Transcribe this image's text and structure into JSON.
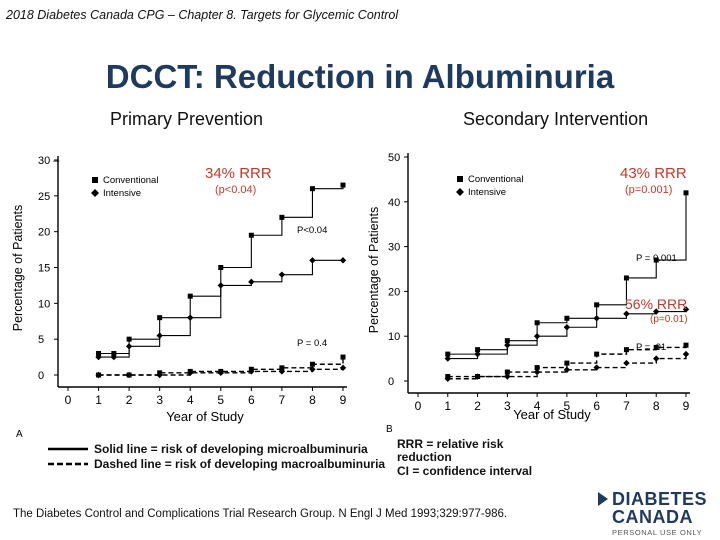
{
  "header": {
    "subtitle": "2018 Diabetes Canada CPG – Chapter 8. Targets for Glycemic Control"
  },
  "slide": {
    "title": "DCCT: Reduction in Albuminuria",
    "left_heading": "Primary Prevention",
    "right_heading": "Secondary Intervention"
  },
  "colors": {
    "title": "#1f3a5f",
    "rrr": "#c0392b",
    "logo": "#1f3a5f"
  },
  "chart_data": [
    {
      "type": "line",
      "panel_label": "A",
      "xlabel": "Year of Study",
      "ylabel": "Percentage of Patients",
      "x_ticks": [
        0,
        1,
        2,
        3,
        4,
        5,
        6,
        7,
        8,
        9
      ],
      "y_ticks": [
        0,
        5,
        10,
        15,
        20,
        25,
        30
      ],
      "y_tick_labels": [
        "0",
        "5",
        "10",
        "15",
        "20",
        "25",
        "30 –"
      ],
      "xlim": [
        0,
        9
      ],
      "ylim": [
        0,
        30
      ],
      "legend": [
        "Conventional",
        "Intensive"
      ],
      "series": [
        {
          "name": "Conventional (microalbuminuria)",
          "style": "solid",
          "marker": "square",
          "x": [
            1,
            1.5,
            2,
            3,
            4,
            5,
            6,
            7,
            8,
            9
          ],
          "y": [
            3,
            3,
            5,
            8,
            11,
            15,
            19.5,
            22,
            26,
            26.5
          ]
        },
        {
          "name": "Intensive (microalbuminuria)",
          "style": "solid",
          "marker": "diamond",
          "x": [
            1,
            1.5,
            2,
            3,
            4,
            5,
            6,
            7,
            8,
            9
          ],
          "y": [
            2.5,
            2.5,
            4,
            5.5,
            8,
            12.5,
            13,
            14,
            16,
            16
          ]
        },
        {
          "name": "Conventional (macroalbuminuria)",
          "style": "dashed",
          "marker": "square",
          "x": [
            1,
            2,
            3,
            4,
            5,
            6,
            7,
            8,
            9
          ],
          "y": [
            0,
            0,
            0.3,
            0.5,
            0.5,
            0.8,
            1,
            1.5,
            2.5
          ]
        },
        {
          "name": "Intensive (macroalbuminuria)",
          "style": "dashed",
          "marker": "diamond",
          "x": [
            1,
            2,
            3,
            4,
            5,
            6,
            7,
            8,
            9
          ],
          "y": [
            0,
            0,
            0,
            0.3,
            0.3,
            0.5,
            0.5,
            0.8,
            1
          ]
        }
      ],
      "annotations": [
        {
          "text": "P<0.04",
          "x": 7.3,
          "y": 20
        },
        {
          "text": "P = 0.4",
          "x": 7.3,
          "y": 4
        }
      ],
      "rrr_labels": [
        {
          "text": "34% RRR",
          "sub": "(p<0.04)"
        }
      ]
    },
    {
      "type": "line",
      "panel_label": "B",
      "xlabel": "Year of Study",
      "ylabel": "Percentage of Patients",
      "x_ticks": [
        0,
        1,
        2,
        3,
        4,
        5,
        6,
        7,
        8,
        9
      ],
      "y_ticks": [
        0,
        10,
        20,
        30,
        40,
        50
      ],
      "y_tick_labels": [
        "0",
        "10",
        "20",
        "30",
        "40",
        "50"
      ],
      "xlim": [
        0,
        9
      ],
      "ylim": [
        0,
        50
      ],
      "legend": [
        "Conventional",
        "Intensive"
      ],
      "series": [
        {
          "name": "Conventional (microalbuminuria)",
          "style": "solid",
          "marker": "square",
          "x": [
            1,
            2,
            3,
            4,
            5,
            6,
            7,
            8,
            9
          ],
          "y": [
            6,
            7,
            9,
            13,
            14,
            17,
            23,
            27,
            42
          ]
        },
        {
          "name": "Intensive (microalbuminuria)",
          "style": "solid",
          "marker": "diamond",
          "x": [
            1,
            2,
            3,
            4,
            5,
            6,
            7,
            8,
            9
          ],
          "y": [
            5,
            6,
            8,
            10,
            12,
            14,
            15,
            15.5,
            16
          ]
        },
        {
          "name": "Conventional (macroalbuminuria)",
          "style": "dashed",
          "marker": "square",
          "x": [
            1,
            2,
            3,
            4,
            5,
            6,
            7,
            8,
            9
          ],
          "y": [
            1,
            1,
            2,
            3,
            4,
            6,
            7,
            7.5,
            8
          ]
        },
        {
          "name": "Intensive (macroalbuminuria)",
          "style": "dashed",
          "marker": "diamond",
          "x": [
            1,
            2,
            3,
            4,
            5,
            6,
            7,
            8,
            9
          ],
          "y": [
            0.5,
            1,
            1,
            2,
            2.5,
            3,
            4,
            5,
            6
          ]
        }
      ],
      "annotations": [
        {
          "text": "P = 0.001",
          "x": 7.2,
          "y": 27
        },
        {
          "text": "P = .01",
          "x": 7.2,
          "y": 8
        }
      ],
      "rrr_labels": [
        {
          "text": "43% RRR",
          "sub": "(p=0.001)"
        },
        {
          "text": "56% RRR",
          "sub": "(p=0.01)"
        }
      ]
    }
  ],
  "notes": {
    "solid_line": "Solid line = risk of developing microalbuminuria",
    "dashed_line": "Dashed line = risk of developing macroalbuminuria",
    "rrr_def_1": "RRR = relative risk",
    "rrr_def_2": "reduction",
    "ci_def": "CI = confidence interval"
  },
  "citation": "The Diabetes Control and Complications Trial Research Group. N Engl J Med 1993;329:977-986.",
  "logo": {
    "line1": "DIABETES",
    "line2": "CANADA",
    "tagline": "PERSONAL USE ONLY"
  }
}
